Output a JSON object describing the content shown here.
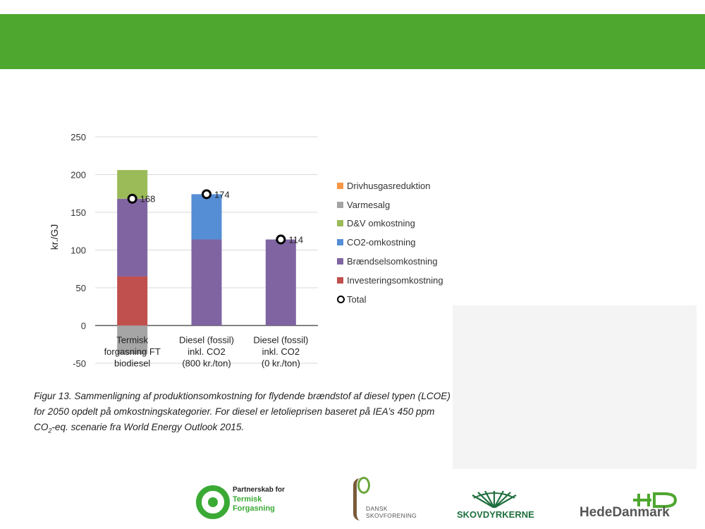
{
  "chart_data": {
    "type": "bar",
    "stacked": true,
    "title": "",
    "xlabel": "",
    "ylabel": "kr./GJ",
    "ylim": [
      -50,
      250
    ],
    "yticks": [
      -50,
      0,
      50,
      100,
      150,
      200,
      250
    ],
    "grid": true,
    "legend_position": "right",
    "categories": [
      [
        "Termisk",
        "forgasning FT",
        "biodiesel"
      ],
      [
        "Diesel (fossil)",
        "inkl. CO2",
        "(800 kr./ton)"
      ],
      [
        "Diesel (fossil)",
        "inkl. CO2",
        "(0 kr./ton)"
      ]
    ],
    "series": [
      {
        "name": "Drivhusgasreduktion",
        "color": "#f79646",
        "values": [
          0,
          0,
          0
        ]
      },
      {
        "name": "Varmesalg",
        "color": "#a5a5a5",
        "values": [
          -38,
          0,
          0
        ]
      },
      {
        "name": "D&V omkostning",
        "color": "#9bbb59",
        "values": [
          38,
          0,
          0
        ]
      },
      {
        "name": "CO2-omkostning",
        "color": "#558ed5",
        "values": [
          0,
          60,
          0
        ]
      },
      {
        "name": "Brændselsomkostning",
        "color": "#8064a2",
        "values": [
          103,
          114,
          114
        ]
      },
      {
        "name": "Investeringsomkostning",
        "color": "#c0504d",
        "values": [
          65,
          0,
          0
        ]
      }
    ],
    "total": {
      "name": "Total",
      "values": [
        168,
        174,
        114
      ],
      "labels": [
        "168",
        "174",
        "114"
      ]
    }
  },
  "caption": {
    "part1": "Figur 13. Sammenligning af produktionsomkostning for flydende brændstof af diesel typen (LCOE) for 2050 opdelt på omkostningskategorier. For diesel er letolieprisen baseret på IEA’s 450 ppm CO",
    "sub": "2",
    "part2": "-eq. scenarie fra World Energy Outlook 2015."
  },
  "logos": {
    "ptf": {
      "line1": "Partnerskab for",
      "line2": "Termisk",
      "line3": "Forgasning"
    },
    "dsf": {
      "line1": "DANSK",
      "line2": "SKOVFORENING"
    },
    "skov": {
      "text": "SKOVDYRKERNE"
    },
    "hede": {
      "text": "HedeDanmark"
    }
  }
}
